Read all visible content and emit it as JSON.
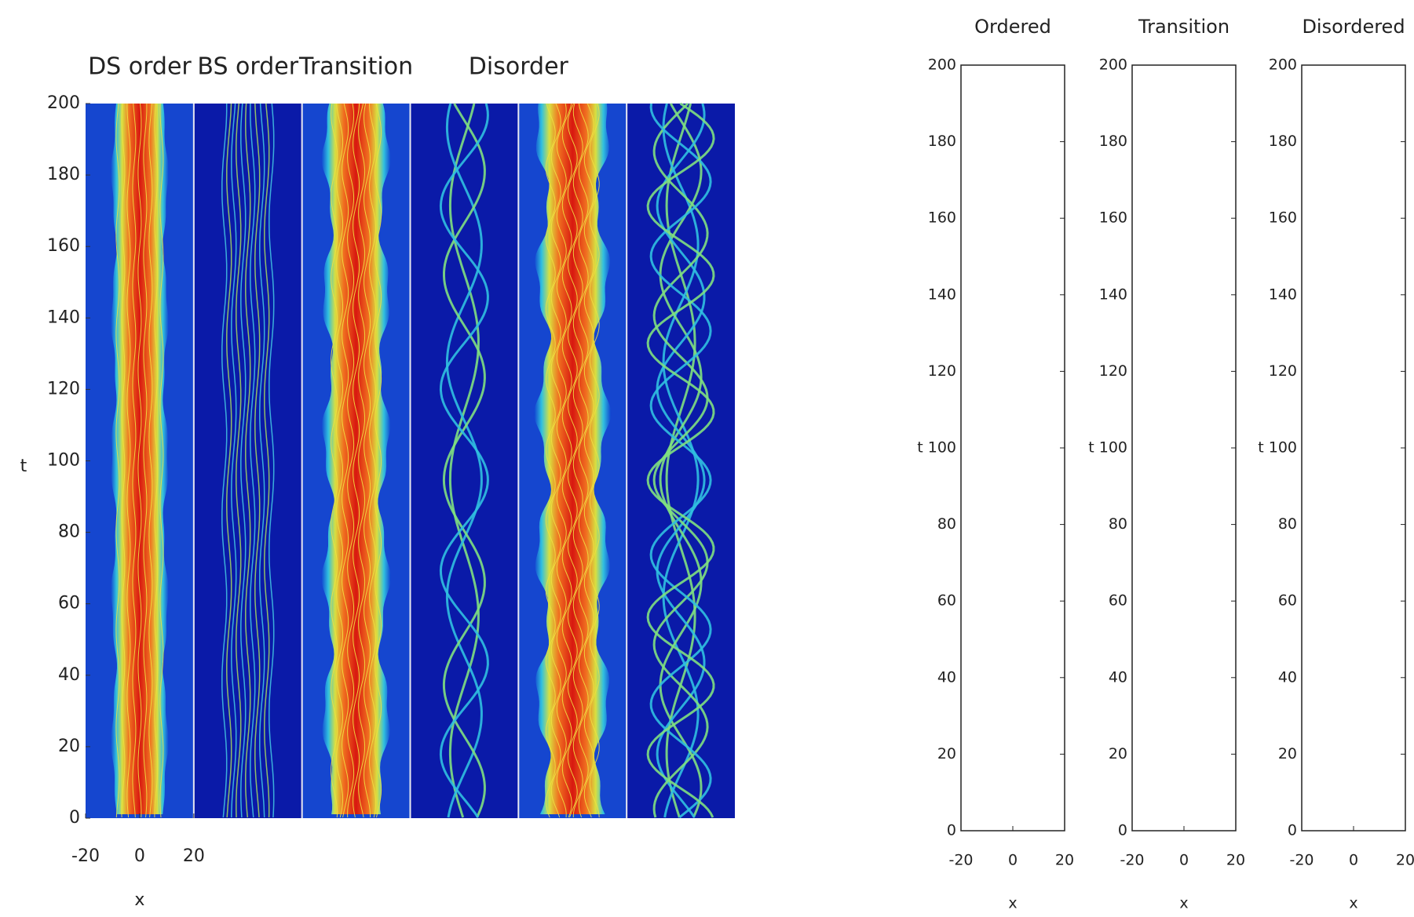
{
  "left_figure": {
    "panel_titles": [
      "DS order",
      "BS order",
      "Transition",
      "Disorder"
    ],
    "xlim": [
      -20,
      20
    ],
    "ylim": [
      0,
      200
    ],
    "xticks": [
      -20,
      0,
      20
    ],
    "yticks": [
      0,
      20,
      40,
      60,
      80,
      100,
      120,
      140,
      160,
      180,
      200
    ],
    "xlabel": "x",
    "ylabel": "t"
  },
  "right_figure": {
    "panels": [
      {
        "title": "Ordered"
      },
      {
        "title": "Transition"
      },
      {
        "title": "Disordered"
      }
    ],
    "xlim": [
      -20,
      20
    ],
    "ylim": [
      0,
      200
    ],
    "xticks": [
      -20,
      0,
      20
    ],
    "yticks": [
      0,
      20,
      40,
      60,
      80,
      100,
      120,
      140,
      160,
      180,
      200
    ],
    "xlabel": "x",
    "ylabel": "t"
  }
}
